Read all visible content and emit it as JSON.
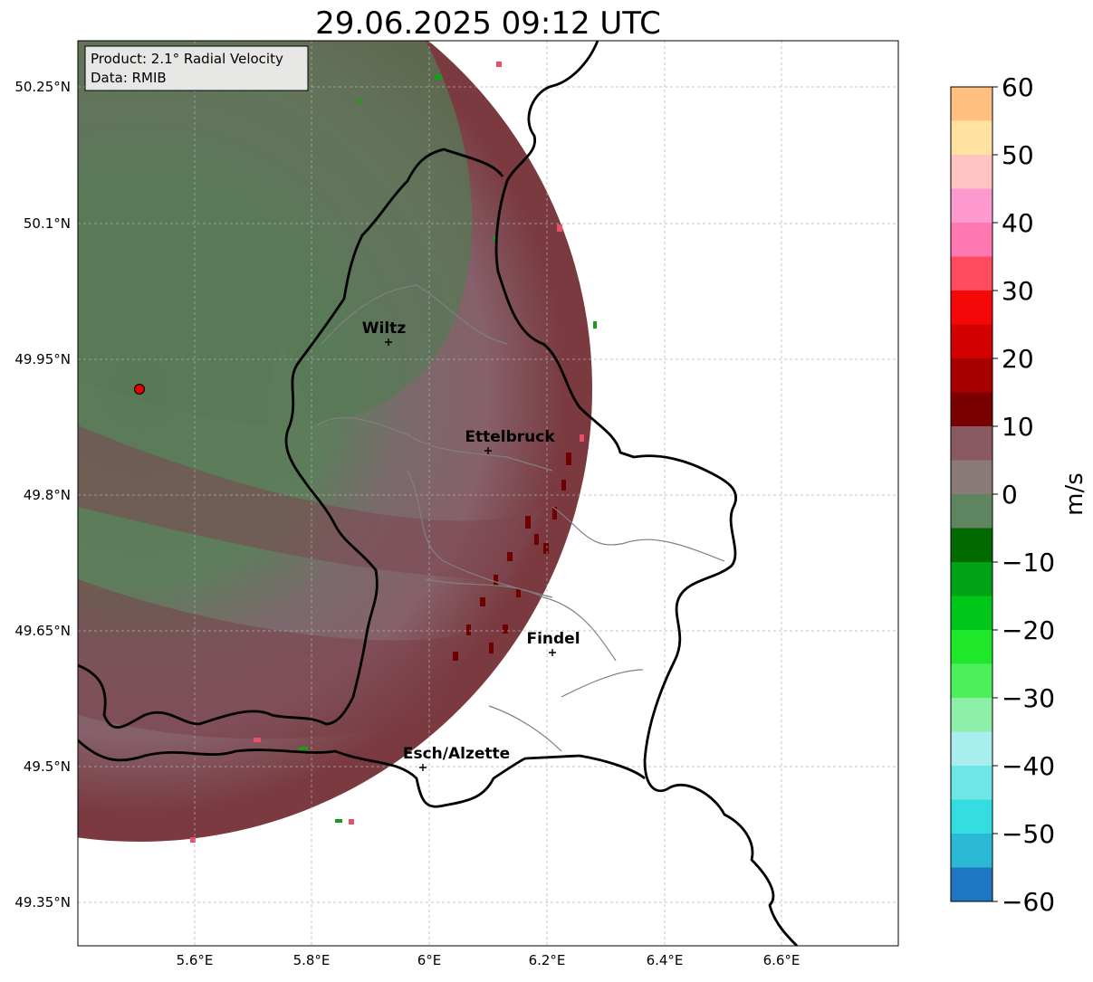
{
  "title": "29.06.2025 09:12 UTC",
  "info_box": {
    "line1": "Product: 2.1° Radial Velocity",
    "line2": "Data: RMIB"
  },
  "lat_ticks": [
    "50.25°N",
    "50.1°N",
    "49.95°N",
    "49.8°N",
    "49.65°N",
    "49.5°N",
    "49.35°N"
  ],
  "lon_ticks": [
    "5.6°E",
    "5.8°E",
    "6°E",
    "6.2°E",
    "6.4°E",
    "6.6°E"
  ],
  "cities": [
    {
      "name": "Wiltz",
      "lon": 5.93,
      "lat": 49.97
    },
    {
      "name": "Ettelbruck",
      "lon": 6.1,
      "lat": 49.85
    },
    {
      "name": "Findel",
      "lon": 6.21,
      "lat": 49.63
    },
    {
      "name": "Esch/Alzette",
      "lon": 5.99,
      "lat": 49.5
    }
  ],
  "radar_site": {
    "lon": 5.5,
    "lat": 49.915
  },
  "colorbar": {
    "label": "m/s",
    "min": -60,
    "max": 60,
    "ticks": [
      "60",
      "50",
      "40",
      "30",
      "20",
      "10",
      "0",
      "−10",
      "−20",
      "−30",
      "−40",
      "−50",
      "−60"
    ],
    "colors": {
      "-60": "#1f77c4",
      "-55": "#2bb8d4",
      "-50": "#33dde0",
      "-45": "#6fe6e6",
      "-40": "#a9eeee",
      "-35": "#8cf0a8",
      "-30": "#4cf05a",
      "-25": "#1fe82a",
      "-20": "#00c81a",
      "-15": "#00a314",
      "-10": "#006a00",
      "-5": "#5f8560",
      "0": "#8a7a7a",
      "5": "#8a5a62",
      "10": "#7a0000",
      "15": "#a80000",
      "20": "#d20000",
      "25": "#f50808",
      "30": "#ff4a60",
      "35": "#ff78b0",
      "40": "#ff9ad0",
      "45": "#ffc4c0",
      "50": "#ffe2a0",
      "55": "#ffc080",
      "60": "#ff9a5a"
    }
  }
}
